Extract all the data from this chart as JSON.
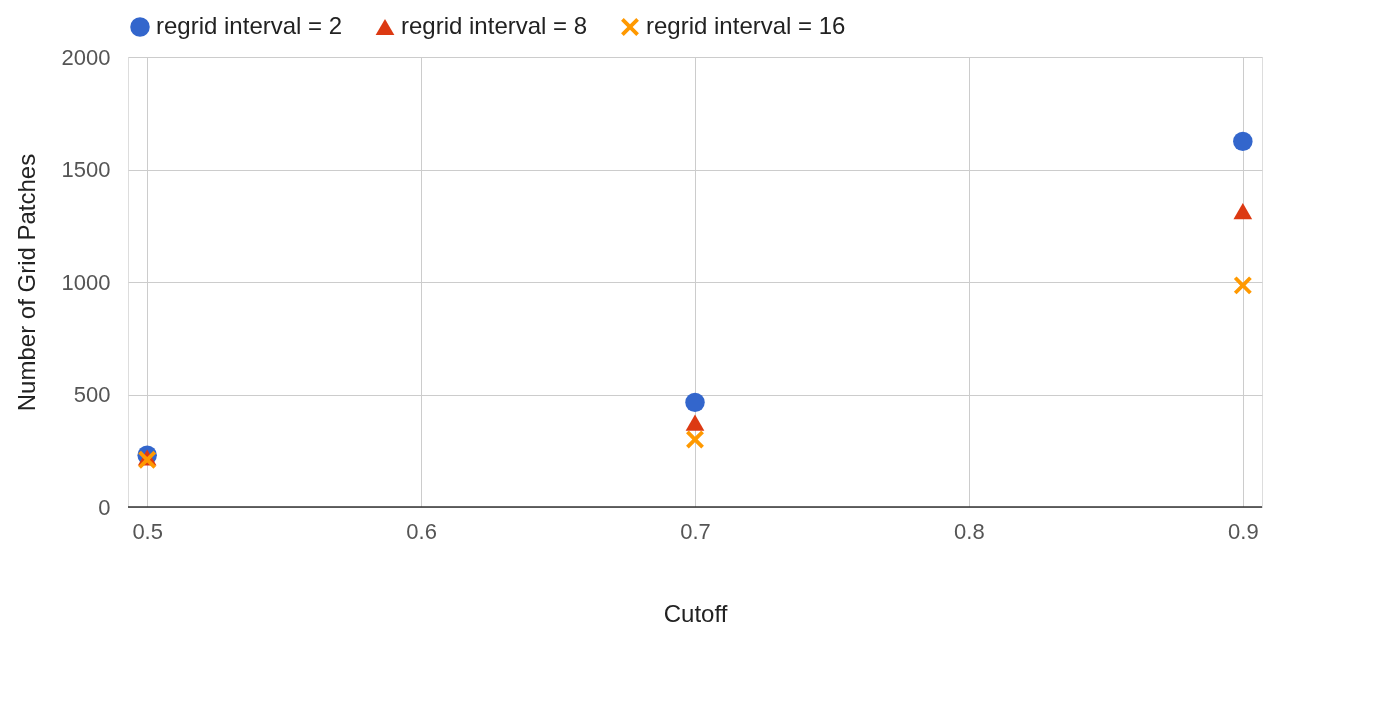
{
  "chart_data": {
    "type": "scatter",
    "xlabel": "Cutoff",
    "ylabel": "Number of Grid Patches",
    "x": [
      0.5,
      0.7,
      0.9
    ],
    "series": [
      {
        "name": "regrid interval = 2",
        "color": "#3366cc",
        "marker": "circle",
        "values": [
          230,
          465,
          1625
        ]
      },
      {
        "name": "regrid interval = 8",
        "color": "#dc3912",
        "marker": "triangle",
        "values": [
          220,
          375,
          1315
        ]
      },
      {
        "name": "regrid interval = 16",
        "color": "#ff9900",
        "marker": "cross",
        "values": [
          210,
          300,
          985
        ]
      }
    ],
    "xlim": [
      0.493,
      0.907
    ],
    "xticks": [
      0.5,
      0.6,
      0.7,
      0.8,
      0.9
    ],
    "ylim": [
      0,
      2000
    ],
    "yticks": [
      0,
      500,
      1000,
      1500,
      2000
    ],
    "grid": true,
    "legend": "top"
  }
}
